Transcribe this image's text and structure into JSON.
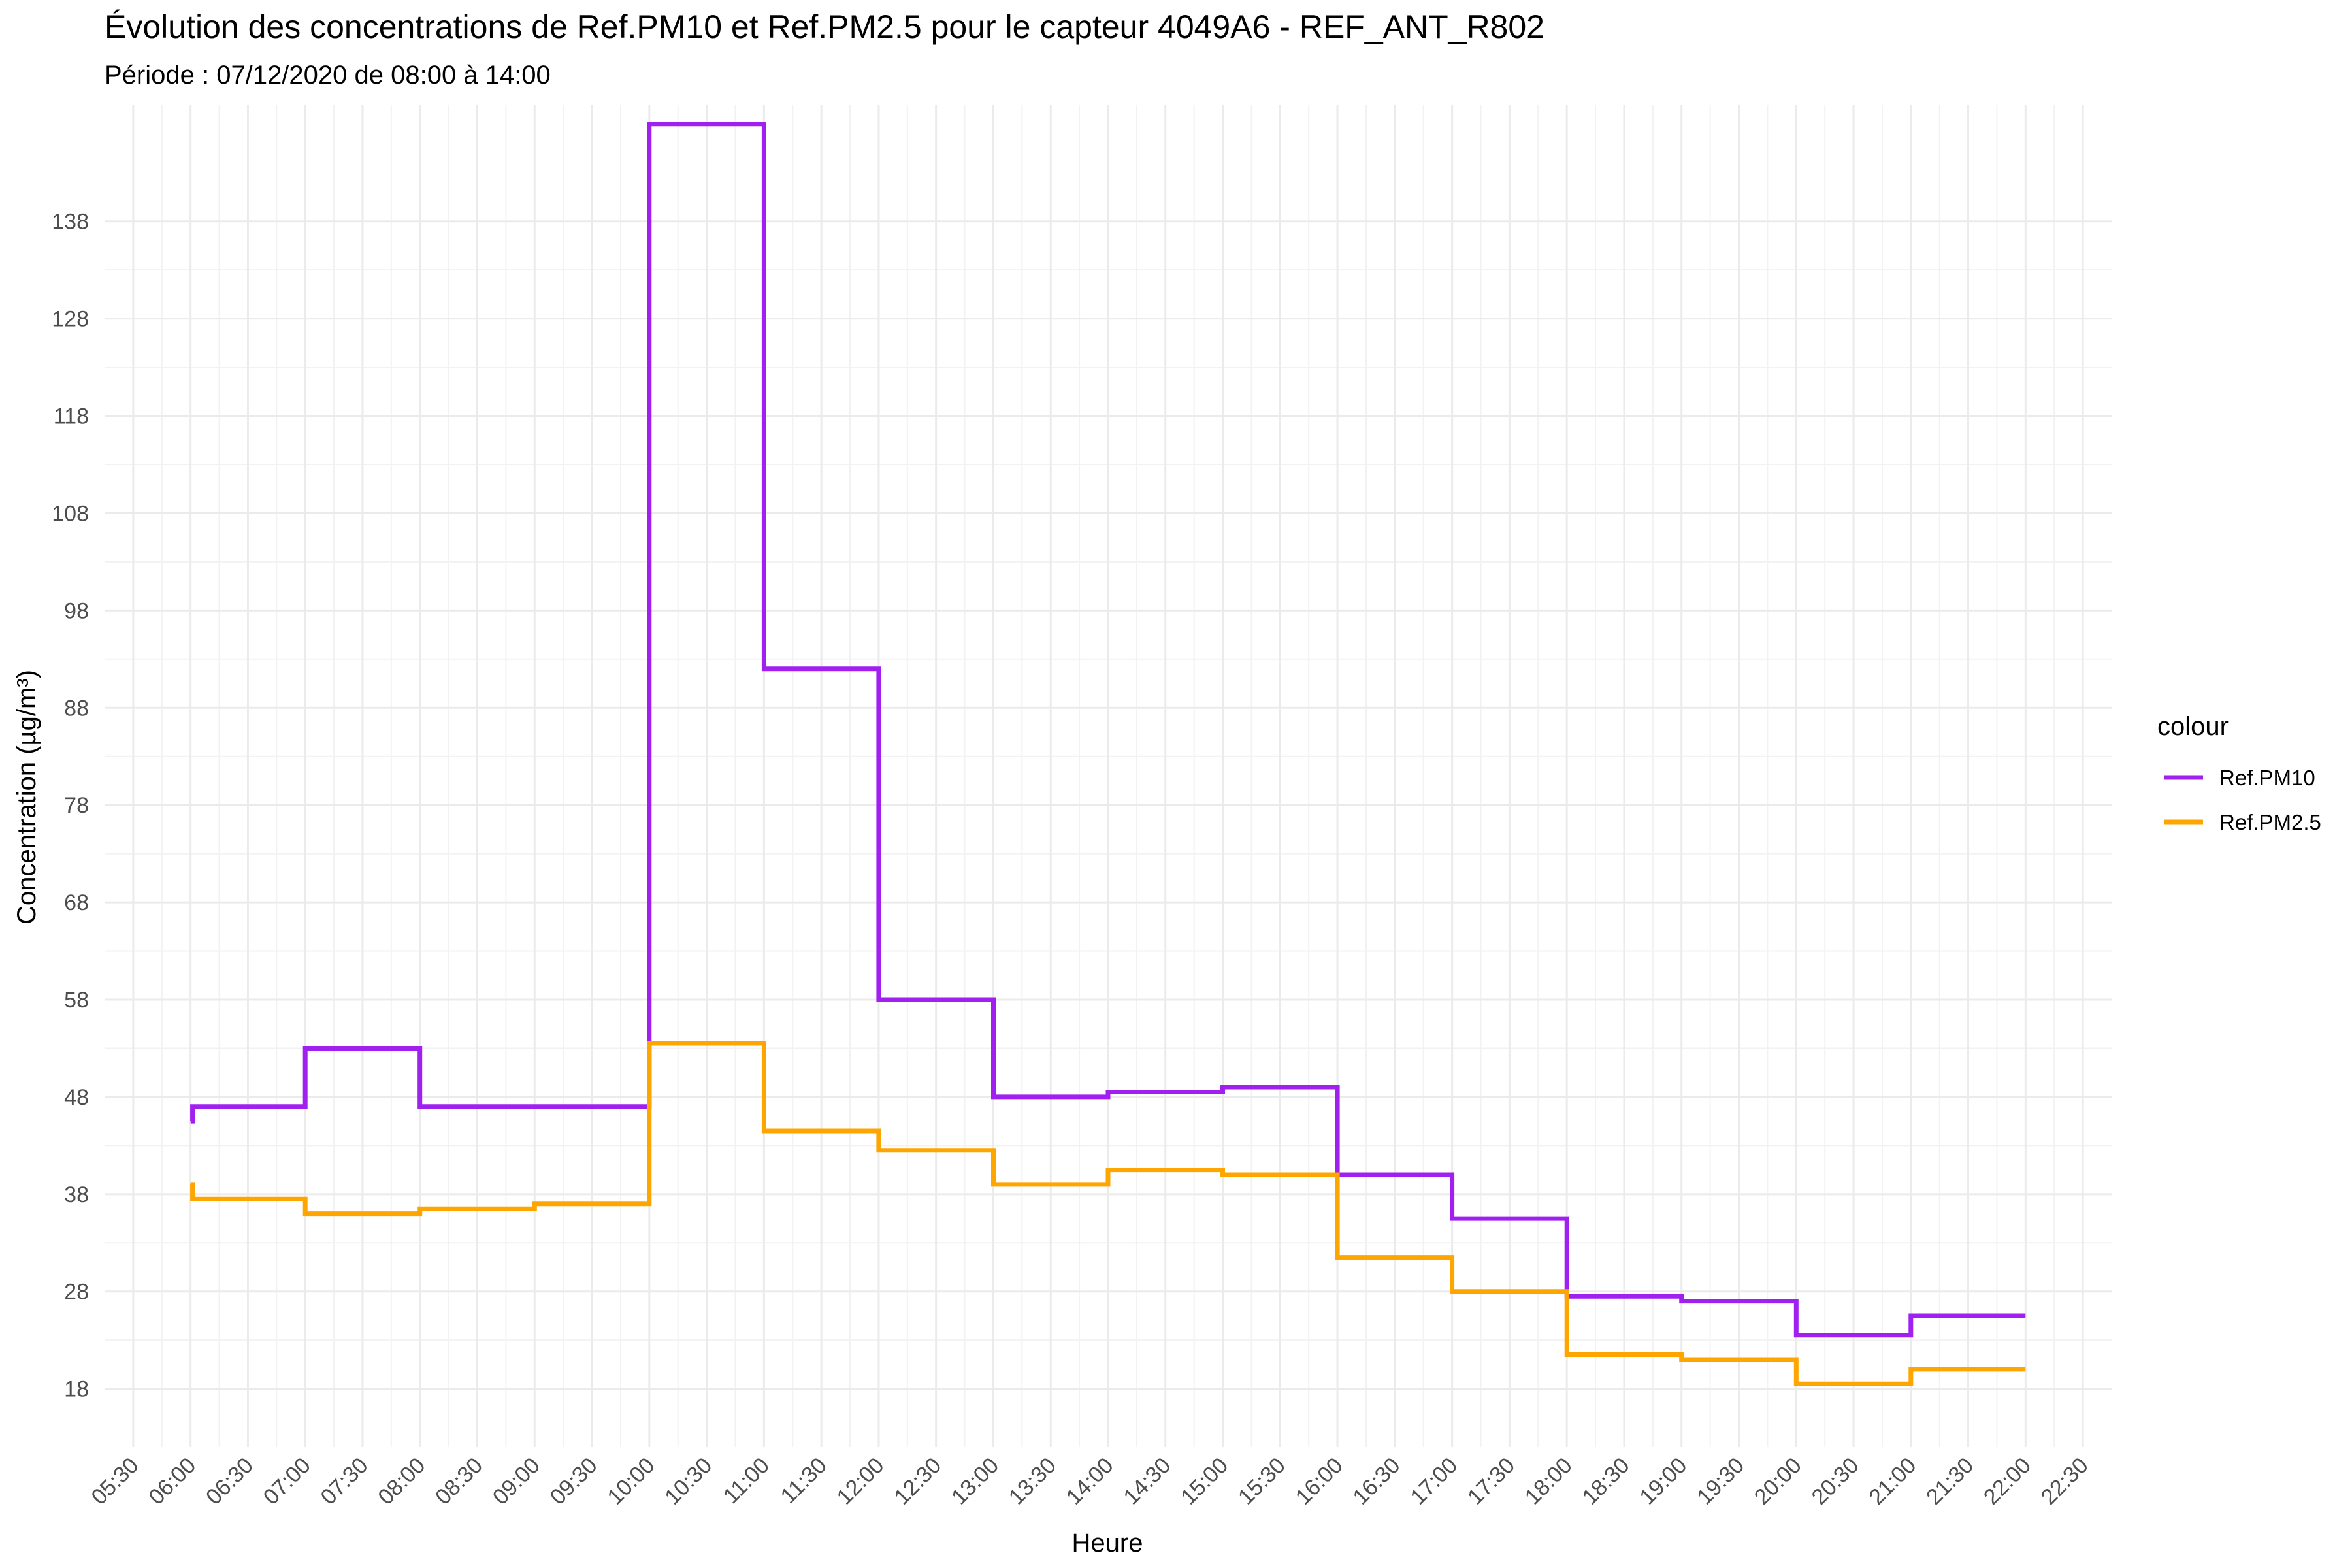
{
  "chart_data": {
    "type": "line",
    "title": "Évolution des concentrations de Ref.PM10 et Ref.PM2.5 pour le capteur 4049A6 - REF_ANT_R802",
    "subtitle": "Période : 07/12/2020 de 08:00 à 14:00",
    "xlabel": "Heure",
    "ylabel": "Concentration (µg/m³)",
    "x_ticks": [
      "05:30",
      "06:00",
      "06:30",
      "07:00",
      "07:30",
      "08:00",
      "08:30",
      "09:00",
      "09:30",
      "10:00",
      "10:30",
      "11:00",
      "11:30",
      "12:00",
      "12:30",
      "13:00",
      "13:30",
      "14:00",
      "14:30",
      "15:00",
      "15:30",
      "16:00",
      "16:30",
      "17:00",
      "17:30",
      "18:00",
      "18:30",
      "19:00",
      "19:30",
      "20:00",
      "20:30",
      "21:00",
      "21:30",
      "22:00",
      "22:30"
    ],
    "y_ticks": [
      18,
      28,
      38,
      48,
      58,
      68,
      78,
      88,
      98,
      108,
      118,
      128,
      138
    ],
    "xlim": [
      "05:15",
      "22:45"
    ],
    "ylim": [
      12,
      150
    ],
    "grid": true,
    "step": "hv",
    "legend": {
      "title": "colour",
      "position": "right"
    },
    "series": [
      {
        "name": "Ref.PM10",
        "color": "#A020F0",
        "points": [
          [
            "06:00",
            45.5
          ],
          [
            "06:01",
            47
          ],
          [
            "07:00",
            53
          ],
          [
            "08:00",
            47
          ],
          [
            "09:00",
            47
          ],
          [
            "10:00",
            148
          ],
          [
            "11:00",
            92
          ],
          [
            "12:00",
            58
          ],
          [
            "13:00",
            48
          ],
          [
            "14:00",
            48.5
          ],
          [
            "15:00",
            49
          ],
          [
            "16:00",
            40
          ],
          [
            "17:00",
            35.5
          ],
          [
            "18:00",
            27.5
          ],
          [
            "19:00",
            27
          ],
          [
            "20:00",
            23.5
          ],
          [
            "21:00",
            25.5
          ],
          [
            "22:00",
            25.5
          ]
        ]
      },
      {
        "name": "Ref.PM2.5",
        "color": "#FFA500",
        "points": [
          [
            "06:00",
            39
          ],
          [
            "06:01",
            37.5
          ],
          [
            "07:00",
            36
          ],
          [
            "08:00",
            36.5
          ],
          [
            "09:00",
            37
          ],
          [
            "10:00",
            53.5
          ],
          [
            "11:00",
            44.5
          ],
          [
            "12:00",
            42.5
          ],
          [
            "13:00",
            39
          ],
          [
            "14:00",
            40.5
          ],
          [
            "15:00",
            40
          ],
          [
            "16:00",
            31.5
          ],
          [
            "17:00",
            28
          ],
          [
            "18:00",
            21.5
          ],
          [
            "19:00",
            21
          ],
          [
            "20:00",
            18.5
          ],
          [
            "21:00",
            20
          ],
          [
            "22:00",
            20
          ]
        ]
      }
    ]
  }
}
